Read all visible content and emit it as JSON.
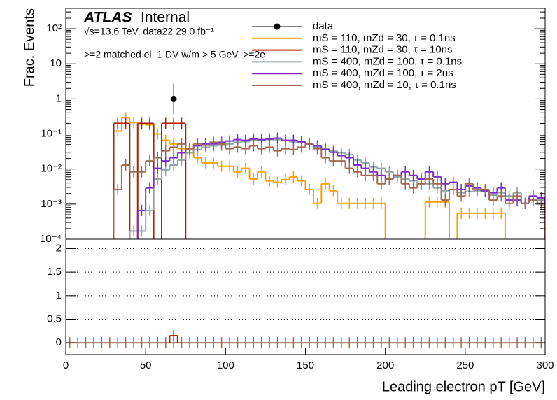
{
  "chart_data": [
    {
      "type": "histogram",
      "title": "ATLAS",
      "subtitle": "Internal",
      "annotations": [
        "√s=13.6 TeV, data22 29.0 fb⁻¹",
        ">=2 matched el, 1 DV w/m > 5 GeV, >=2e"
      ],
      "y_label": "Frac. Events",
      "log_y": true,
      "xlim": [
        0,
        300
      ],
      "ylim": [
        0.0001,
        380
      ],
      "yticks": [
        {
          "value": 0.0001,
          "label": "10⁻⁴"
        },
        {
          "value": 0.001,
          "label": "10⁻³"
        },
        {
          "value": 0.01,
          "label": "10⁻²"
        },
        {
          "value": 0.1,
          "label": "10⁻¹"
        },
        1,
        10,
        {
          "value": 100,
          "label": "10²"
        }
      ],
      "bins": [
        0,
        5,
        10,
        15,
        20,
        25,
        30,
        35,
        40,
        45,
        50,
        55,
        60,
        65,
        70,
        75,
        80,
        85,
        90,
        95,
        100,
        105,
        110,
        115,
        120,
        125,
        130,
        135,
        140,
        145,
        150,
        155,
        160,
        165,
        170,
        175,
        180,
        185,
        190,
        195,
        200,
        205,
        210,
        215,
        220,
        225,
        230,
        235,
        240,
        245,
        250,
        255,
        260,
        265,
        270,
        275,
        280,
        285,
        290,
        295,
        300
      ],
      "legend": "top-right",
      "series": [
        {
          "name": "data",
          "color": "#000000",
          "draw": "points",
          "values": [
            null,
            null,
            null,
            null,
            null,
            null,
            null,
            null,
            null,
            null,
            null,
            null,
            null,
            1,
            null,
            null,
            null,
            null,
            null,
            null,
            null,
            null,
            null,
            null,
            null,
            null,
            null,
            null,
            null,
            null,
            null,
            null,
            null,
            null,
            null,
            null,
            null,
            null,
            null,
            null,
            null,
            null,
            null,
            null,
            null,
            null,
            null,
            null,
            null,
            null,
            null,
            null,
            null,
            null,
            null,
            null,
            null,
            null,
            null,
            null
          ]
        },
        {
          "name": "mS = 110, mZd = 30, τ = 0.1ns",
          "color": "#f5a300",
          "values": [
            null,
            null,
            null,
            null,
            null,
            null,
            0.12,
            0.29,
            0.21,
            0.19,
            0.18,
            0.1,
            0.066,
            0.052,
            0.038,
            0.036,
            0.021,
            0.015,
            0.015,
            0.012,
            0.012,
            0.0083,
            0.0105,
            0.0052,
            0.0083,
            0.0046,
            0.0042,
            0.005,
            0.006,
            0.0046,
            0.0026,
            0.00105,
            0.0038,
            0.0024,
            0.00105,
            0.00105,
            0.00105,
            0.00105,
            0.00105,
            0.00105,
            null,
            null,
            null,
            null,
            null,
            0.00115,
            0.00115,
            0.00115,
            null,
            0.00055,
            0.00055,
            0.00055,
            0.00055,
            0.00055,
            0.00055,
            null,
            null,
            null,
            null,
            null
          ]
        },
        {
          "name": "mS = 110, mZd = 30, τ = 10ns",
          "color": "#b02000",
          "values": [
            null,
            null,
            null,
            null,
            null,
            null,
            0.2,
            0.2,
            null,
            0.2,
            0.2,
            null,
            0.2,
            0.2,
            0.2,
            null,
            null,
            null,
            null,
            null,
            null,
            null,
            null,
            null,
            null,
            null,
            null,
            null,
            null,
            null,
            null,
            null,
            null,
            null,
            null,
            null,
            null,
            null,
            null,
            null,
            null,
            null,
            null,
            null,
            null,
            null,
            null,
            null,
            null,
            null,
            null,
            null,
            null,
            null,
            null,
            null,
            null,
            null,
            null,
            null
          ]
        },
        {
          "name": "mS = 400, mZd = 100, τ = 0.1ns",
          "color": "#90a4aa",
          "values": [
            null,
            null,
            null,
            null,
            null,
            null,
            null,
            null,
            0.00017,
            0.00017,
            0.00066,
            0.0052,
            0.0095,
            0.013,
            0.018,
            0.029,
            0.036,
            0.042,
            0.046,
            0.048,
            0.052,
            0.058,
            0.06,
            0.066,
            0.066,
            0.069,
            0.069,
            0.066,
            0.06,
            0.058,
            0.052,
            0.042,
            0.038,
            0.033,
            0.029,
            0.026,
            0.018,
            0.015,
            0.0115,
            0.0105,
            0.0083,
            0.006,
            0.0052,
            0.0046,
            0.0038,
            0.0038,
            0.0029,
            0.0024,
            0.0026,
            0.0021,
            0.0023,
            0.0024,
            0.0023,
            0.0018,
            0.0021,
            0.0017,
            0.0021,
            0.00105,
            0.0013,
            0.0013
          ]
        },
        {
          "name": "mS = 400, mZd = 100, τ = 2ns",
          "color": "#7a2cc4",
          "values": [
            null,
            null,
            null,
            null,
            null,
            null,
            null,
            null,
            null,
            0.00066,
            0.0029,
            0.0105,
            0.017,
            0.021,
            0.029,
            0.038,
            0.046,
            0.052,
            0.052,
            0.058,
            0.063,
            0.069,
            0.066,
            0.072,
            0.069,
            0.072,
            0.076,
            0.066,
            0.066,
            0.06,
            0.052,
            0.046,
            0.036,
            0.03,
            0.024,
            0.021,
            0.013,
            0.0105,
            0.0083,
            0.0066,
            0.0052,
            0.0066,
            0.0083,
            0.0066,
            0.0052,
            0.0083,
            0.006,
            0.0038,
            0.0042,
            0.0026,
            0.0033,
            0.0029,
            0.0024,
            0.0021,
            0.0029,
            0.0013,
            0.0013,
            0.00105,
            0.0017,
            0.0015
          ]
        },
        {
          "name": "mS = 400, mZd = 10, τ = 0.1ns",
          "color": "#a06a50",
          "values": [
            null,
            null,
            null,
            null,
            null,
            null,
            0.0026,
            0.013,
            0.0083,
            0.0083,
            0.017,
            0.021,
            0.033,
            0.042,
            0.052,
            0.038,
            0.052,
            0.048,
            0.058,
            0.052,
            0.038,
            0.042,
            0.038,
            0.046,
            0.038,
            0.042,
            0.033,
            0.038,
            0.036,
            0.042,
            0.052,
            0.038,
            0.021,
            0.017,
            0.017,
            0.0105,
            0.0083,
            0.0066,
            0.0066,
            0.0038,
            0.0052,
            0.0066,
            0.0038,
            0.0029,
            0.0038,
            0.0052,
            0.0038,
            0.0013,
            0.0026,
            0.0017,
            0.0038,
            0.0026,
            0.0026,
            0.0013,
            0.0017,
            0.00105,
            0.0017,
            0.00105,
            0.0013,
            0.00105
          ]
        }
      ]
    },
    {
      "type": "histogram",
      "x_label": "Leading electron pT [GeV]",
      "xlim": [
        0,
        300
      ],
      "xticks": [
        0,
        50,
        100,
        150,
        200,
        250,
        300
      ],
      "ylim": [
        -0.25,
        2.2
      ],
      "yticks": [
        0,
        0.5,
        1,
        1.5,
        2
      ],
      "grid": true,
      "bins": [
        0,
        5,
        10,
        15,
        20,
        25,
        30,
        35,
        40,
        45,
        50,
        55,
        60,
        65,
        70,
        75,
        80,
        85,
        90,
        95,
        100,
        105,
        110,
        115,
        120,
        125,
        130,
        135,
        140,
        145,
        150,
        155,
        160,
        165,
        170,
        175,
        180,
        185,
        190,
        195,
        200,
        205,
        210,
        215,
        220,
        225,
        230,
        235,
        240,
        245,
        250,
        255,
        260,
        265,
        270,
        275,
        280,
        285,
        290,
        295,
        300
      ],
      "series": [
        {
          "color": "#a06a50",
          "values": [
            0,
            0,
            0,
            0,
            0,
            0,
            0,
            0,
            0,
            0,
            0,
            0,
            0,
            0,
            0,
            0,
            0,
            0,
            0,
            0,
            0,
            0,
            0,
            0,
            0,
            0,
            0,
            0,
            0,
            0,
            0,
            0,
            0,
            0,
            0,
            0,
            0,
            0,
            0,
            0,
            0,
            0,
            0,
            0,
            0,
            0,
            0,
            0,
            0,
            0,
            0,
            0,
            0,
            0,
            0,
            0,
            0,
            0,
            0,
            0
          ]
        },
        {
          "color": "#b02000",
          "values": [
            null,
            null,
            null,
            null,
            null,
            null,
            null,
            null,
            null,
            null,
            null,
            null,
            null,
            0.15,
            null,
            null,
            null,
            null,
            null,
            null,
            null,
            null,
            null,
            null,
            null,
            null,
            null,
            null,
            null,
            null,
            null,
            null,
            null,
            null,
            null,
            null,
            null,
            null,
            null,
            null,
            null,
            null,
            null,
            null,
            null,
            null,
            null,
            null,
            null,
            null,
            null,
            null,
            null,
            null,
            null,
            null,
            null,
            null,
            null,
            null
          ]
        }
      ]
    }
  ]
}
